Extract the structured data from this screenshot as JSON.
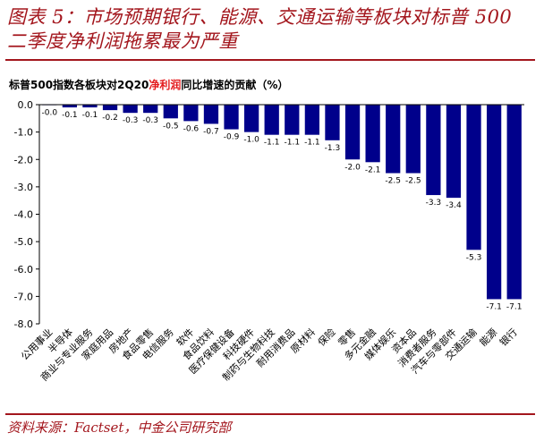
{
  "header": {
    "title_line1": "图表 5：市场预期银行、能源、交通运输等板块对标普 500",
    "title_line2": "二季度净利润拖累最为严重"
  },
  "footer": {
    "source": "资料来源：Factset，中金公司研究部"
  },
  "chart_data": {
    "type": "bar",
    "title_parts": [
      "标普500指数各板块对2Q20",
      "净利润",
      "同比增速的贡献（%）"
    ],
    "categories": [
      "公用事业",
      "半导体",
      "商业与专业服务",
      "家庭用品",
      "房地产",
      "食品零售",
      "电信服务",
      "软件",
      "食品饮料",
      "医疗保健设备",
      "科技硬件",
      "制药与生物科技",
      "耐用消费品",
      "原材料",
      "保险",
      "零售",
      "多元金融",
      "媒体娱乐",
      "资本品",
      "消费者服务",
      "汽车与零部件",
      "交通运输",
      "能源",
      "银行"
    ],
    "values": [
      -0.0,
      -0.1,
      -0.1,
      -0.2,
      -0.3,
      -0.3,
      -0.5,
      -0.6,
      -0.7,
      -0.9,
      -1.0,
      -1.1,
      -1.1,
      -1.1,
      -1.3,
      -2.0,
      -2.1,
      -2.5,
      -2.5,
      -3.3,
      -3.4,
      -5.3,
      -7.1,
      -7.1
    ],
    "value_labels": [
      "-0.0",
      "-0.1",
      "-0.1",
      "-0.2",
      "-0.3",
      "-0.3",
      "-0.5",
      "-0.6",
      "-0.7",
      "-0.9",
      "-1.0",
      "-1.1",
      "-1.1",
      "-1.1",
      "-1.3",
      "-2.0",
      "-2.1",
      "-2.5",
      "-2.5",
      "-3.3",
      "-3.4",
      "-5.3",
      "-7.1",
      "-7.1"
    ],
    "yticks": [
      "0.0",
      "-1.0",
      "-2.0",
      "-3.0",
      "-4.0",
      "-5.0",
      "-6.0",
      "-7.0",
      "-8.0"
    ],
    "ylim": [
      -8,
      0
    ],
    "bar_color": "#00008b",
    "label_color": "#ff0000",
    "grid": false,
    "legend": "none"
  }
}
